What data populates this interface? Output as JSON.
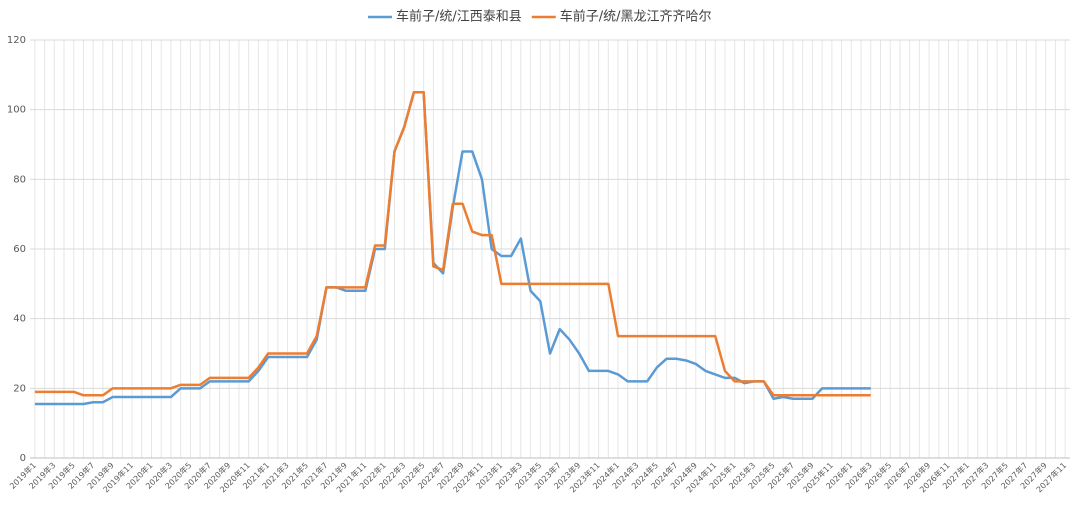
{
  "chart_data": {
    "type": "line",
    "categories": [
      "2019年1",
      null,
      "2019年3",
      null,
      "2019年5",
      null,
      "2019年7",
      null,
      "2019年9",
      null,
      "2019年11",
      null,
      "2020年1",
      null,
      "2020年3",
      null,
      "2020年5",
      null,
      "2020年7",
      null,
      "2020年9",
      null,
      "2020年11",
      null,
      "2021年1",
      null,
      "2021年3",
      null,
      "2021年5",
      null,
      "2021年7",
      null,
      "2021年9",
      null,
      "2021年11",
      null,
      "2022年1",
      null,
      "2022年3",
      null,
      "2022年5",
      null,
      "2022年7",
      null,
      "2022年9",
      null,
      "2022年11",
      null,
      "2023年1",
      null,
      "2023年3",
      null,
      "2023年5",
      null,
      "2023年7",
      null,
      "2023年9",
      null,
      "2023年11",
      null,
      "2024年1",
      null,
      "2024年3",
      null,
      "2024年5",
      null,
      "2024年7",
      null,
      "2024年9",
      null,
      "2024年11",
      null,
      "2025年1",
      null,
      "2025年3",
      null,
      "2025年5",
      null,
      "2025年7",
      null,
      "2025年9",
      null,
      "2025年11",
      null,
      "2026年1",
      null,
      "2026年3",
      null,
      "2026年5",
      null,
      "2026年7",
      null,
      "2026年9",
      null,
      "2026年11",
      null,
      "2027年1",
      null,
      "2027年3",
      null,
      "2027年5",
      null,
      "2027年7",
      null,
      "2027年9",
      null,
      "2027年11"
    ],
    "series": [
      {
        "name": "车前子/统/江西泰和县",
        "color": "#5b9bd5",
        "values": [
          15.5,
          15.5,
          15.5,
          15.5,
          15.5,
          15.5,
          16,
          16,
          17.5,
          17.5,
          17.5,
          17.5,
          17.5,
          17.5,
          17.5,
          20,
          20,
          20,
          22,
          22,
          22,
          22,
          22,
          25,
          29,
          29,
          29,
          29,
          29,
          34,
          49,
          49,
          48,
          48,
          48,
          60,
          60,
          88,
          95,
          105,
          105,
          56,
          53,
          72,
          88,
          88,
          80,
          60,
          58,
          58,
          63,
          48,
          45,
          30,
          37,
          34,
          30,
          25,
          25,
          25,
          24,
          22,
          22,
          22,
          26,
          28.5,
          28.5,
          28,
          27,
          25,
          24,
          23,
          23,
          21.5,
          22,
          22,
          17,
          17.5,
          17,
          17,
          17,
          20,
          20,
          20,
          20,
          20,
          20,
          null,
          null,
          null,
          null,
          null,
          null,
          null,
          null,
          null,
          null,
          null,
          null,
          null,
          null,
          null,
          null,
          null,
          null,
          null,
          null
        ]
      },
      {
        "name": "车前子/统/黑龙江齐齐哈尔",
        "color": "#ed7d31",
        "values": [
          19,
          19,
          19,
          19,
          19,
          18,
          18,
          18,
          20,
          20,
          20,
          20,
          20,
          20,
          20,
          21,
          21,
          21,
          23,
          23,
          23,
          23,
          23,
          26,
          30,
          30,
          30,
          30,
          30,
          35,
          49,
          49,
          49,
          49,
          49,
          61,
          61,
          88,
          95,
          105,
          105,
          55,
          54,
          73,
          73,
          65,
          64,
          64,
          50,
          50,
          50,
          50,
          50,
          50,
          50,
          50,
          50,
          50,
          50,
          50,
          35,
          35,
          35,
          35,
          35,
          35,
          35,
          35,
          35,
          35,
          35,
          25,
          22,
          22,
          22,
          22,
          18,
          18,
          18,
          18,
          18,
          18,
          18,
          18,
          18,
          18,
          18,
          null,
          null,
          null,
          null,
          null,
          null,
          null,
          null,
          null,
          null,
          null,
          null,
          null,
          null,
          null,
          null,
          null,
          null,
          null,
          null
        ]
      }
    ],
    "ylim": [
      0,
      120
    ],
    "yticks": [
      0,
      20,
      40,
      60,
      80,
      100,
      120
    ],
    "grid": true,
    "legend": "top"
  }
}
